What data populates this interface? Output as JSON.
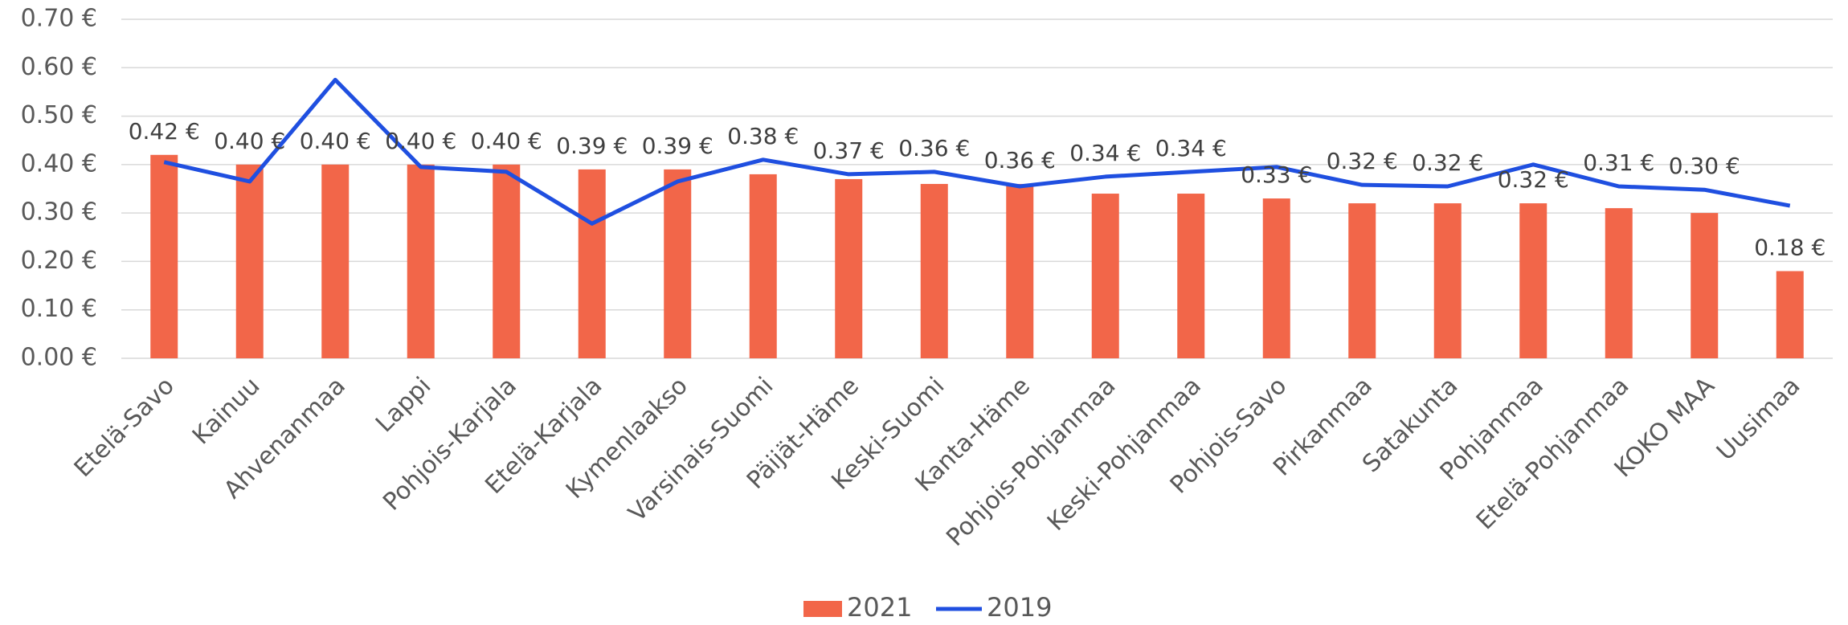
{
  "chart_data": {
    "type": "bar",
    "categories": [
      "Etelä-Savo",
      "Kainuu",
      "Ahvenanmaa",
      "Lappi",
      "Pohjois-Karjala",
      "Etelä-Karjala",
      "Kymenlaakso",
      "Varsinais-Suomi",
      "Päijät-Häme",
      "Keski-Suomi",
      "Kanta-Häme",
      "Pohjois-Pohjanmaa",
      "Keski-Pohjanmaa",
      "Pohjois-Savo",
      "Pirkanmaa",
      "Satakunta",
      "Pohjanmaa",
      "Etelä-Pohjanmaa",
      "KOKO MAA",
      "Uusimaa"
    ],
    "series": [
      {
        "name": "2021",
        "type": "bar",
        "color": "#f26649",
        "values": [
          0.42,
          0.4,
          0.4,
          0.4,
          0.4,
          0.39,
          0.39,
          0.38,
          0.37,
          0.36,
          0.36,
          0.34,
          0.34,
          0.33,
          0.32,
          0.32,
          0.32,
          0.31,
          0.3,
          0.18
        ],
        "value_labels": [
          "0.42 €",
          "0.40 €",
          "0.40 €",
          "0.40 €",
          "0.40 €",
          "0.39 €",
          "0.39 €",
          "0.38 €",
          "0.37 €",
          "0.36 €",
          "0.36 €",
          "0.34 €",
          "0.34 €",
          "0.33 €",
          "0.32 €",
          "0.32 €",
          "0.32 €",
          "0.31 €",
          "0.30 €",
          "0.18 €"
        ]
      },
      {
        "name": "2019",
        "type": "line",
        "color": "#1f4fe0",
        "values": [
          0.405,
          0.365,
          0.575,
          0.395,
          0.385,
          0.278,
          0.365,
          0.41,
          0.38,
          0.385,
          0.355,
          0.375,
          0.385,
          0.395,
          0.358,
          0.355,
          0.4,
          0.355,
          0.348,
          0.315
        ]
      }
    ],
    "ylim": [
      0,
      0.7
    ],
    "yticks": [
      {
        "value": 0,
        "label": "0.00 €"
      },
      {
        "value": 0.1,
        "label": "0.10 €"
      },
      {
        "value": 0.2,
        "label": "0.20 €"
      },
      {
        "value": 0.3,
        "label": "0.30 €"
      },
      {
        "value": 0.4,
        "label": "0.40 €"
      },
      {
        "value": 0.5,
        "label": "0.50 €"
      },
      {
        "value": 0.6,
        "label": "0.60 €"
      },
      {
        "value": 0.7,
        "label": "0.70 €"
      }
    ],
    "grid": true,
    "legend": "bottom"
  }
}
